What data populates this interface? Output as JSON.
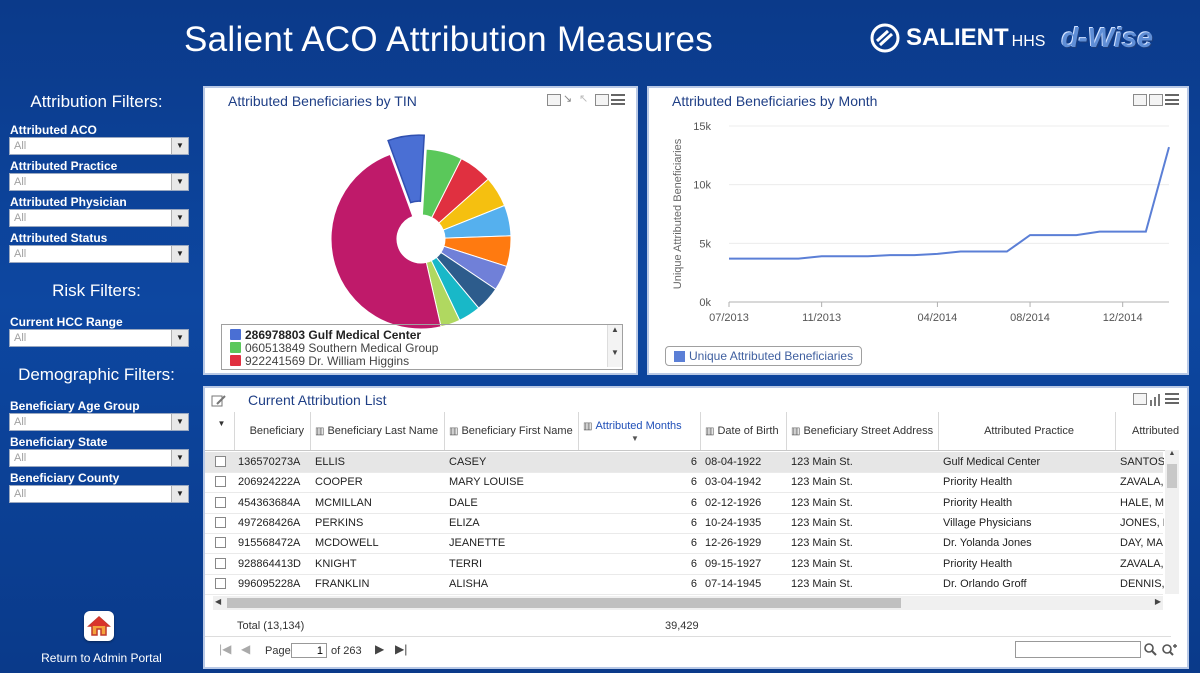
{
  "header": {
    "title": "Salient ACO Attribution Measures",
    "salient_logo": "SALIENT",
    "salient_suffix": "HHS",
    "dwise_logo": "d-Wise"
  },
  "sidebar": {
    "attribution_title": "Attribution Filters:",
    "attribution_filters": [
      {
        "label": "Attributed ACO",
        "value": "All"
      },
      {
        "label": "Attributed Practice",
        "value": "All"
      },
      {
        "label": "Attributed Physician",
        "value": "All"
      },
      {
        "label": "Attributed Status",
        "value": "All"
      }
    ],
    "risk_title": "Risk Filters:",
    "risk_filters": [
      {
        "label": "Current HCC Range",
        "value": "All"
      }
    ],
    "demographic_title": "Demographic Filters:",
    "demographic_filters": [
      {
        "label": "Beneficiary Age Group",
        "value": "All"
      },
      {
        "label": "Beneficiary State",
        "value": "All"
      },
      {
        "label": "Beneficiary County",
        "value": "All"
      }
    ],
    "home_label": "Return to Admin Portal"
  },
  "tin_panel": {
    "title": "Attributed Beneficiaries by TIN",
    "legend": [
      {
        "label": "286978803 Gulf Medical Center",
        "color": "#4a6fd4",
        "bold": true
      },
      {
        "label": "060513849 Southern Medical Group",
        "color": "#5ac85a",
        "bold": false
      },
      {
        "label": "922241569 Dr. William Higgins",
        "color": "#e03040",
        "bold": false
      }
    ]
  },
  "month_panel": {
    "title": "Attributed Beneficiaries by Month",
    "legend_label": "Unique Attributed Beneficiaries"
  },
  "chart_data": [
    {
      "type": "pie",
      "title": "Attributed Beneficiaries by TIN",
      "donut": true,
      "slices": [
        {
          "label": "286978803 Gulf Medical Center",
          "value": 6.5,
          "color": "#4a6fd4",
          "exploded": true
        },
        {
          "label": "060513849 Southern Medical Group",
          "value": 6.5,
          "color": "#5ac85a"
        },
        {
          "label": "922241569 Dr. William Higgins",
          "value": 6,
          "color": "#e03040"
        },
        {
          "label": "",
          "value": 5.5,
          "color": "#f5c010"
        },
        {
          "label": "",
          "value": 5.5,
          "color": "#55b0ee"
        },
        {
          "label": "",
          "value": 5.5,
          "color": "#ff7a10"
        },
        {
          "label": "",
          "value": 4.5,
          "color": "#7080d8"
        },
        {
          "label": "",
          "value": 4.5,
          "color": "#2d5c8c"
        },
        {
          "label": "",
          "value": 4,
          "color": "#18b8c8"
        },
        {
          "label": "",
          "value": 3.5,
          "color": "#b0d860"
        },
        {
          "label": "",
          "value": 48,
          "color": "#bf1a6a"
        }
      ]
    },
    {
      "type": "line",
      "title": "Attributed Beneficiaries by Month",
      "ylabel": "Unique Attributed Beneficiaries",
      "ylim": [
        0,
        15000
      ],
      "yticks": [
        {
          "value": 0,
          "label": "0k"
        },
        {
          "value": 5000,
          "label": "5k"
        },
        {
          "value": 10000,
          "label": "10k"
        },
        {
          "value": 15000,
          "label": "15k"
        }
      ],
      "xticks": [
        {
          "index": 0,
          "label": "07/2013"
        },
        {
          "index": 4,
          "label": "11/2013"
        },
        {
          "index": 9,
          "label": "04/2014"
        },
        {
          "index": 13,
          "label": "08/2014"
        },
        {
          "index": 17,
          "label": "12/2014"
        }
      ],
      "series": [
        {
          "name": "Unique Attributed Beneficiaries",
          "color": "#5b7fd6",
          "values": [
            3700,
            3700,
            3700,
            3700,
            3900,
            3900,
            3900,
            4000,
            4000,
            4100,
            4300,
            4300,
            4300,
            5700,
            5700,
            5700,
            6000,
            6000,
            6000,
            13200
          ]
        }
      ]
    }
  ],
  "table_panel": {
    "title": "Current Attribution List",
    "columns": [
      "Beneficiary",
      "Beneficiary Last Name",
      "Beneficiary First Name",
      "Attributed Months",
      "Date of Birth",
      "Beneficiary Street Address",
      "Attributed Practice",
      "Attributed"
    ],
    "rows": [
      {
        "id": "136570273A",
        "last": "ELLIS",
        "first": "CASEY",
        "months": "6",
        "dob": "08-04-1922",
        "address": "123 Main St.",
        "practice": "Gulf Medical Center",
        "physician": "SANTOS,"
      },
      {
        "id": "206924222A",
        "last": "COOPER",
        "first": "MARY LOUISE",
        "months": "6",
        "dob": "03-04-1942",
        "address": "123 Main St.",
        "practice": "Priority Health",
        "physician": "ZAVALA,"
      },
      {
        "id": "454363684A",
        "last": "MCMILLAN",
        "first": "DALE",
        "months": "6",
        "dob": "02-12-1926",
        "address": "123 Main St.",
        "practice": "Priority Health",
        "physician": "HALE, ME"
      },
      {
        "id": "497268426A",
        "last": "PERKINS",
        "first": "ELIZA",
        "months": "6",
        "dob": "10-24-1935",
        "address": "123 Main St.",
        "practice": "Village Physicians",
        "physician": "JONES, E"
      },
      {
        "id": "915568472A",
        "last": "MCDOWELL",
        "first": "JEANETTE",
        "months": "6",
        "dob": "12-26-1929",
        "address": "123 Main St.",
        "practice": "Dr. Yolanda Jones",
        "physician": "DAY, MAI"
      },
      {
        "id": "928864413D",
        "last": "KNIGHT",
        "first": "TERRI",
        "months": "6",
        "dob": "09-15-1927",
        "address": "123 Main St.",
        "practice": "Priority Health",
        "physician": "ZAVALA,"
      },
      {
        "id": "996095228A",
        "last": "FRANKLIN",
        "first": "ALISHA",
        "months": "6",
        "dob": "07-14-1945",
        "address": "123 Main St.",
        "practice": "Dr. Orlando Groff",
        "physician": "DENNIS,"
      }
    ],
    "total_label": "Total (13,134)",
    "total_months": "39,429",
    "pager": {
      "page_label": "Page",
      "page_value": "1",
      "of_label": "of 263"
    }
  }
}
